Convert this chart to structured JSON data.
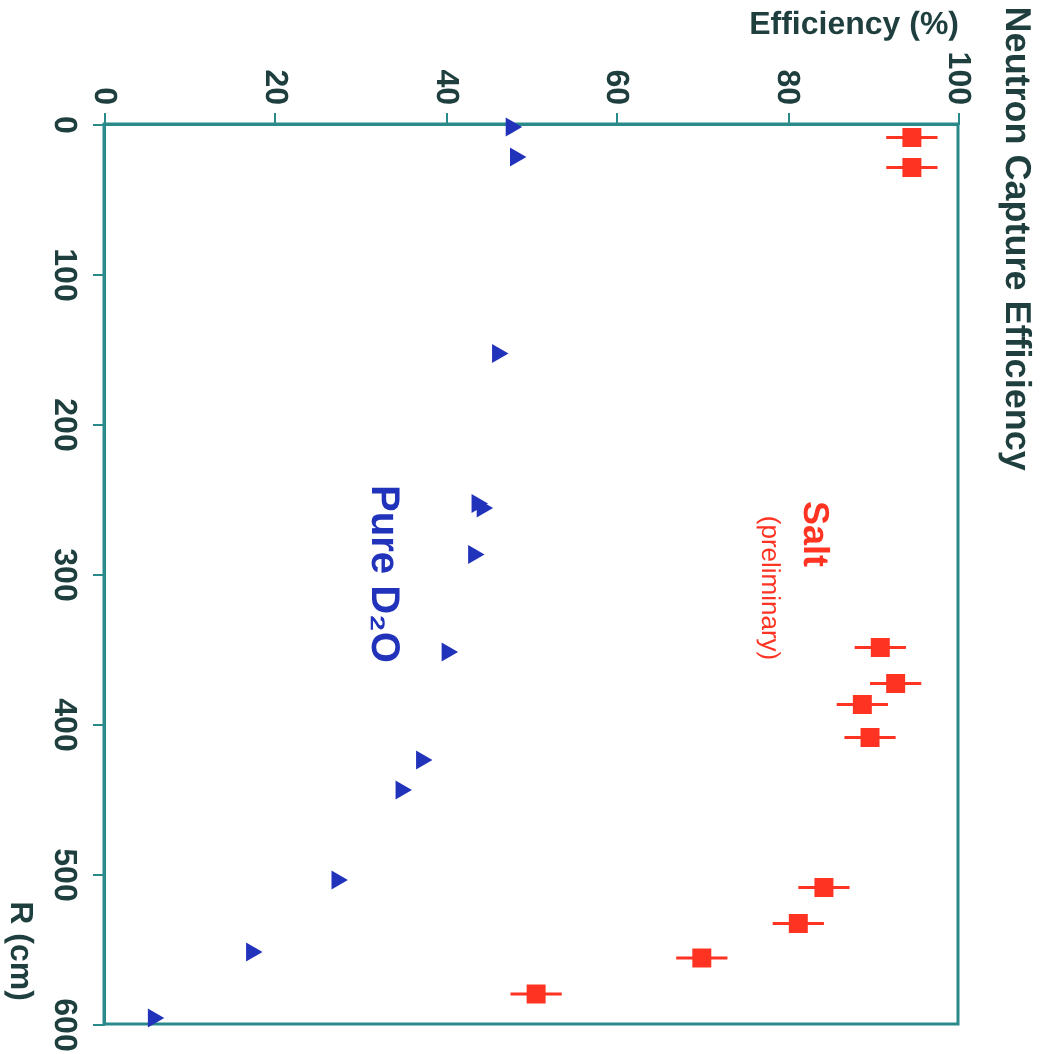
{
  "chart_data": {
    "type": "scatter",
    "title": "Neutron Capture Efficiency",
    "xlabel": "Efficiency (%)",
    "ylabel": "R (cm)",
    "xlim": [
      0,
      100
    ],
    "xticks": [
      0,
      20,
      40,
      60,
      80,
      100
    ],
    "ylim": [
      600,
      0
    ],
    "yticks": [
      0,
      100,
      200,
      300,
      400,
      500,
      600
    ],
    "grid": false,
    "annotations": [
      "(preliminary)"
    ],
    "series": [
      {
        "name": "Salt",
        "color": "#ff3322",
        "marker": "square",
        "values": [
          9,
          29,
          349,
          373,
          387,
          409,
          509,
          533,
          556,
          580
        ],
        "x": [
          94.6,
          94.6,
          90.9,
          92.7,
          88.8,
          89.7,
          84.3,
          81.3,
          70,
          50.6
        ],
        "xerrors": [
          3,
          3,
          3,
          3,
          3,
          3,
          3,
          3,
          3,
          3
        ]
      },
      {
        "name": "Pure D₂O",
        "color": "#2233bb",
        "marker": "triangle",
        "values": [
          2,
          22,
          153,
          253,
          256,
          287,
          352,
          424,
          444,
          504,
          552,
          596
        ],
        "x": [
          48,
          48.5,
          46.4,
          44.0,
          44.6,
          43.6,
          40.5,
          37.5,
          35.1,
          27.6,
          17.6,
          6.1
        ]
      }
    ]
  }
}
